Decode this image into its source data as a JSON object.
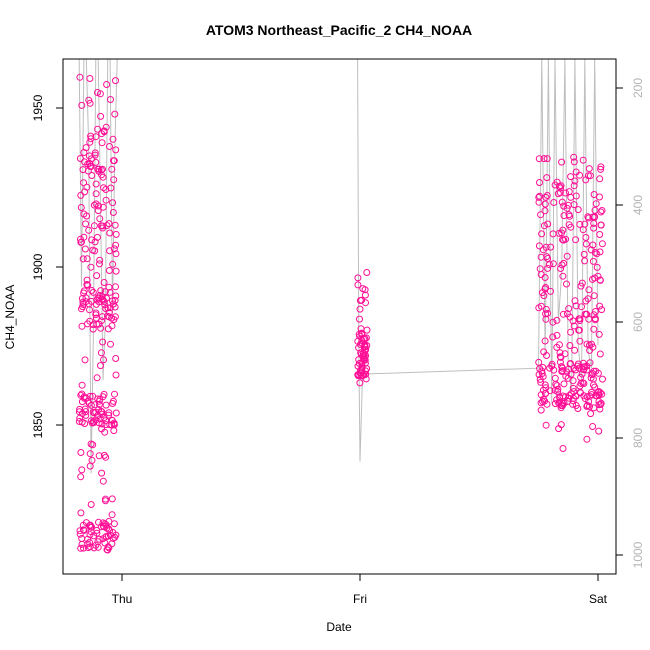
{
  "chart_data": {
    "type": "scatter",
    "title": "ATOM3 Northeast_Pacific_2 CH4_NOAA",
    "xlabel": "Date",
    "ylabel": "CH4_NOAA",
    "x_ticks": [
      "Thu",
      "Fri",
      "Sat"
    ],
    "y_ticks": [
      "1850",
      "1900",
      "1950"
    ],
    "ylim": [
      1800,
      1965
    ],
    "y2_ticks": [
      "200",
      "400",
      "600",
      "800",
      "1000"
    ],
    "y2lim": [
      1030,
      60
    ],
    "y2_inverted": true,
    "secondary_series_color": "#bebebe",
    "point_color": "#ff0f96",
    "clusters": [
      {
        "day": "Thu",
        "span_days": [
          -0.18,
          -0.02
        ],
        "ch4_range": [
          1810,
          1960
        ],
        "dense_bands": [
          [
            1810,
            1820
          ],
          [
            1850,
            1860
          ],
          [
            1880,
            1895
          ],
          [
            1900,
            1945
          ]
        ]
      },
      {
        "day": "Fri",
        "span_days": [
          -0.01,
          0.03
        ],
        "ch4_range": [
          1863,
          1899
        ],
        "dense_bands": [
          [
            1865,
            1880
          ]
        ]
      },
      {
        "day": "Sat",
        "span_days": [
          -0.25,
          0.02
        ],
        "ch4_range": [
          1842,
          1935
        ],
        "dense_bands": [
          [
            1870,
            1930
          ],
          [
            1855,
            1870
          ]
        ]
      }
    ],
    "pressure_profile": [
      {
        "day_offset": -0.18,
        "p": 60
      },
      {
        "day_offset": -0.17,
        "p": 540
      },
      {
        "day_offset": -0.16,
        "p": 90
      },
      {
        "day_offset": -0.15,
        "p": 60
      },
      {
        "day_offset": -0.14,
        "p": 300
      },
      {
        "day_offset": -0.13,
        "p": 860
      },
      {
        "day_offset": -0.12,
        "p": 620
      },
      {
        "day_offset": -0.11,
        "p": 60
      },
      {
        "day_offset": -0.1,
        "p": 60
      },
      {
        "day_offset": -0.09,
        "p": 410
      },
      {
        "day_offset": -0.08,
        "p": 700
      },
      {
        "day_offset": -0.07,
        "p": 600
      },
      {
        "day_offset": -0.06,
        "p": 60
      },
      {
        "day_offset": -0.05,
        "p": 60
      },
      {
        "day_offset": -0.04,
        "p": 590
      },
      {
        "day_offset": -0.03,
        "p": 300
      },
      {
        "day_offset": -0.02,
        "p": 60
      }
    ]
  }
}
